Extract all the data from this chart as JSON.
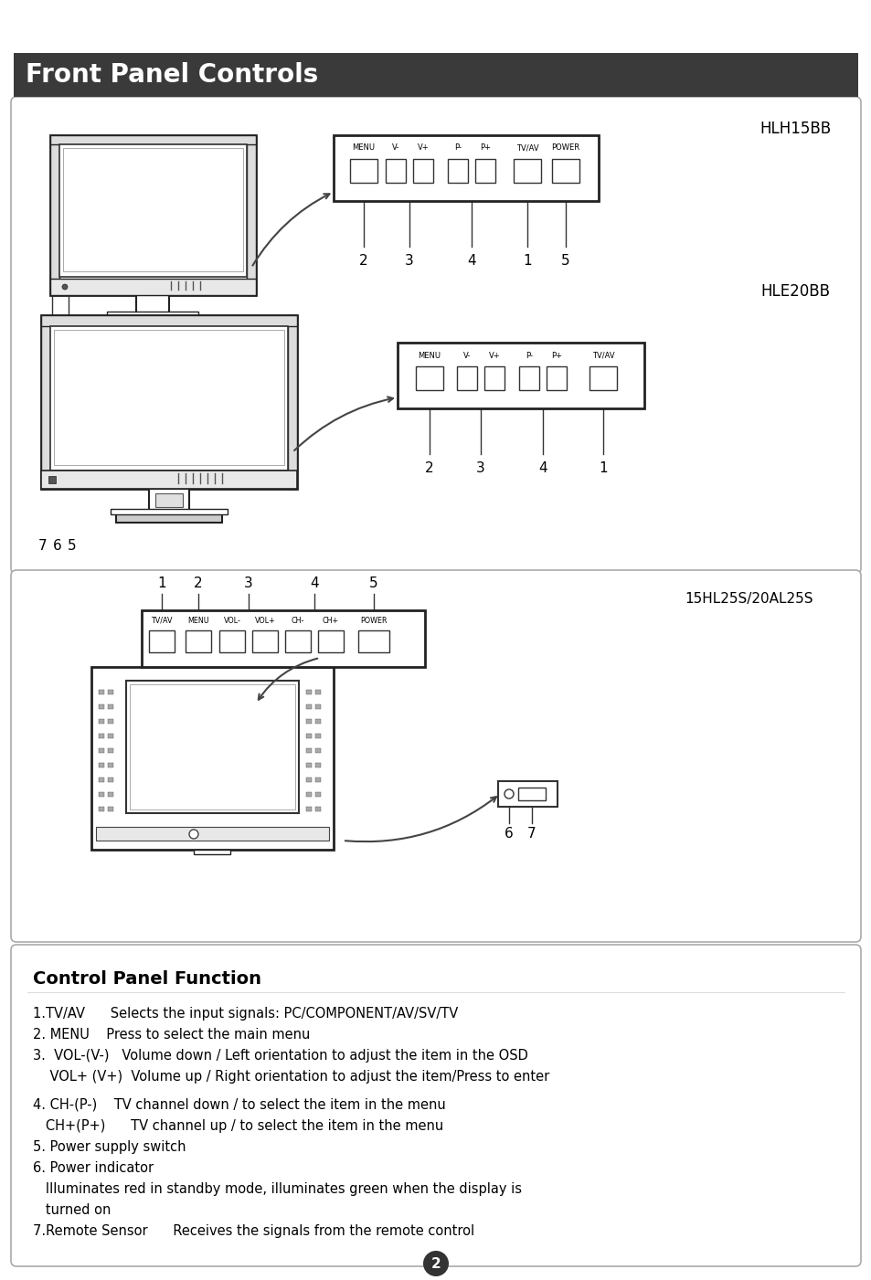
{
  "title": "Front Panel Controls",
  "title_bg": "#3a3a3a",
  "title_color": "#ffffff",
  "page_bg": "#ffffff",
  "model1": "HLH15BB",
  "model2": "HLE20BB",
  "model3": "15HL25S/20AL25S",
  "buttons1": [
    "MENU",
    "V-",
    "V+",
    "P-",
    "P+",
    "TV/AV",
    "POWER"
  ],
  "buttons2": [
    "MENU",
    "V-",
    "V+",
    "P-",
    "P+",
    "TV/AV"
  ],
  "buttons3": [
    "TV/AV",
    "MENU",
    "VOL-",
    "VOL+",
    "CH-",
    "CH+",
    "POWER"
  ],
  "control_panel_title": "Control Panel Function",
  "control_lines": [
    "1.TV/AV      Selects the input signals: PC/COMPONENT/AV/SV/TV",
    "2. MENU    Press to select the main menu",
    "3.  VOL-(V-)   Volume down / Left orientation to adjust the item in the OSD",
    "    VOL+ (V+)  Volume up / Right orientation to adjust the item/Press to enter",
    "",
    "4. CH-(P-)    TV channel down / to select the item in the menu",
    "   CH+(P+)      TV channel up / to select the item in the menu",
    "5. Power supply switch",
    "6. Power indicator",
    "   Illuminates red in standby mode, illuminates green when the display is",
    "   turned on",
    "7.Remote Sensor      Receives the signals from the remote control"
  ],
  "page_number": "2"
}
